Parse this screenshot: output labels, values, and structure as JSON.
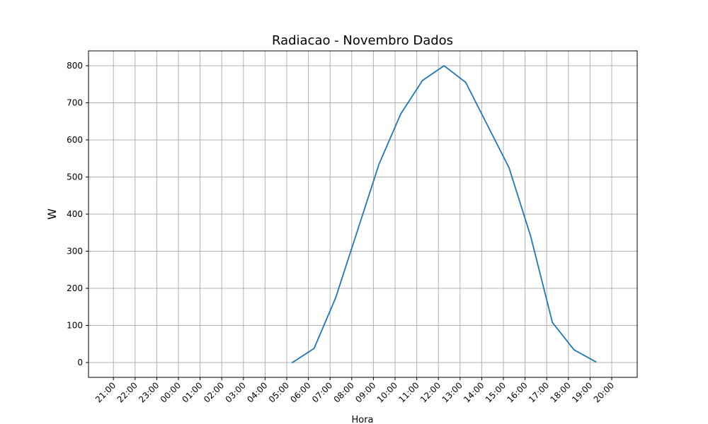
{
  "chart_data": {
    "type": "line",
    "title": "Radiacao - Novembro Dados",
    "xlabel": "Hora",
    "ylabel": "W",
    "x_tick_labels": [
      "21:00",
      "22:00",
      "23:00",
      "00:00",
      "01:00",
      "02:00",
      "03:00",
      "04:00",
      "05:00",
      "06:00",
      "07:00",
      "08:00",
      "09:00",
      "10:00",
      "11:00",
      "12:00",
      "13:00",
      "14:00",
      "15:00",
      "16:00",
      "17:00",
      "18:00",
      "19:00",
      "20:00"
    ],
    "y_ticks": [
      0,
      100,
      200,
      300,
      400,
      500,
      600,
      700,
      800
    ],
    "ylim": [
      -40,
      840
    ],
    "grid": true,
    "series": [
      {
        "color": "#1f77b4",
        "x": [
          "05:00",
          "06:00",
          "07:00",
          "08:00",
          "09:00",
          "10:00",
          "11:00",
          "12:00",
          "13:00",
          "14:00",
          "15:00",
          "16:00",
          "17:00",
          "18:00",
          "19:00",
          "20:00"
        ],
        "values": [
          0,
          38,
          175,
          355,
          535,
          670,
          760,
          800,
          755,
          640,
          525,
          340,
          108,
          34,
          2,
          null
        ]
      }
    ]
  }
}
